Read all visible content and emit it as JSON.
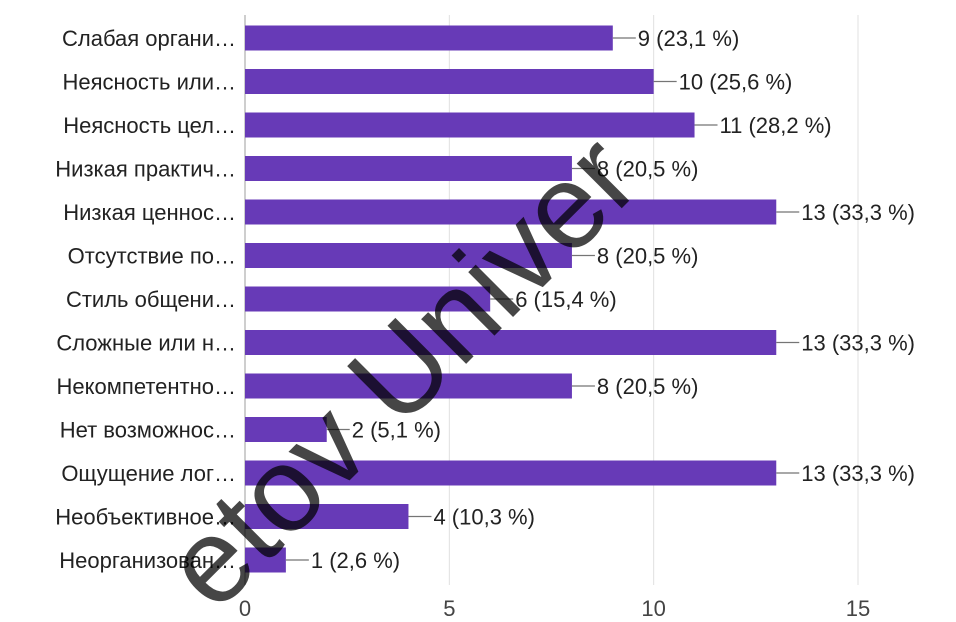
{
  "chart_data": {
    "type": "bar",
    "orientation": "horizontal",
    "categories": [
      "Слабая органи…",
      "Неясность или…",
      "Неясность цел…",
      "Низкая практич…",
      "Низкая ценнос…",
      "Отсутствие по…",
      "Стиль общени…",
      "Сложные или н…",
      "Некомпетентно…",
      "Нет возможнос…",
      "Ощущение лог…",
      "Необъективное…",
      "Неорганизован…"
    ],
    "values": [
      9,
      10,
      11,
      8,
      13,
      8,
      6,
      13,
      8,
      2,
      13,
      4,
      1
    ],
    "value_labels": [
      "9 (23,1 %)",
      "10 (25,6 %)",
      "11 (28,2 %)",
      "8 (20,5 %)",
      "13 (33,3 %)",
      "8 (20,5 %)",
      "6 (15,4 %)",
      "13 (33,3 %)",
      "8 (20,5 %)",
      "2 (5,1 %)",
      "13 (33,3 %)",
      "4 (10,3 %)",
      "1 (2,6 %)"
    ],
    "xlim": [
      0,
      15
    ],
    "x_ticks": [
      "0",
      "5",
      "10",
      "15"
    ],
    "grid": true,
    "legend": "none",
    "bar_color": "#673ab7",
    "watermark": "etov Univer"
  }
}
